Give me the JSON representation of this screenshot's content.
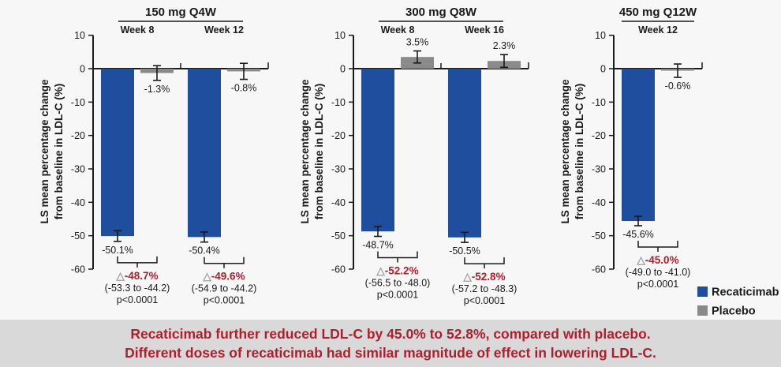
{
  "colors": {
    "recaticimab": "#1f4e9e",
    "placebo": "#8a8a8a",
    "axis": "#1a1a1a",
    "delta_red": "#af1e2d",
    "banner_bg": "#d9d9d9",
    "triangle_gray": "#a0a0a0",
    "page_bg": "#f7f7f7"
  },
  "icons": {
    "delta_triangle": "△"
  },
  "ylabel": {
    "line1": "LS mean percentage change",
    "line2": "from baseline in LDL-C (%)"
  },
  "legend": [
    {
      "label": "Recaticimab",
      "color": "#1f4e9e"
    },
    {
      "label": "Placebo",
      "color": "#8a8a8a"
    }
  ],
  "banner": {
    "line1": "Recaticimab further reduced LDL-C by 45.0% to 52.8%, compared with placebo.",
    "line2": "Different doses of recaticimab had similar magnitude of effect in lowering LDL-C."
  },
  "chart_data": [
    {
      "type": "bar",
      "title": "150 mg Q4W",
      "categories": [
        "Week 8",
        "Week 12"
      ],
      "ylabel": "LS mean percentage change from baseline in LDL-C (%)",
      "ylim": [
        -60,
        10
      ],
      "yticks": [
        10,
        0,
        -10,
        -20,
        -30,
        -40,
        -50,
        -60
      ],
      "series": [
        {
          "name": "Recaticimab",
          "values": [
            -50.1,
            -50.4
          ],
          "errors": [
            1.6,
            1.5
          ],
          "labels": [
            "-50.1%",
            "-50.4%"
          ]
        },
        {
          "name": "Placebo",
          "values": [
            -1.3,
            -0.8
          ],
          "errors": [
            2.2,
            2.4
          ],
          "labels": [
            "-1.3%",
            "-0.8%"
          ]
        }
      ],
      "annotations": [
        {
          "delta": "-48.7%",
          "ci": "(-53.3 to -44.2)",
          "p": "p<0.0001"
        },
        {
          "delta": "-49.6%",
          "ci": "(-54.9 to -44.2)",
          "p": "p<0.0001"
        }
      ]
    },
    {
      "type": "bar",
      "title": "300 mg Q8W",
      "categories": [
        "Week 8",
        "Week 16"
      ],
      "ylabel": "LS mean percentage change from baseline in LDL-C (%)",
      "ylim": [
        -60,
        10
      ],
      "yticks": [
        10,
        0,
        -10,
        -20,
        -30,
        -40,
        -50,
        -60
      ],
      "series": [
        {
          "name": "Recaticimab",
          "values": [
            -48.7,
            -50.5
          ],
          "errors": [
            1.5,
            1.5
          ],
          "labels": [
            "-48.7%",
            "-50.5%"
          ]
        },
        {
          "name": "Placebo",
          "values": [
            3.5,
            2.3
          ],
          "errors": [
            1.8,
            1.9
          ],
          "labels": [
            "3.5%",
            "2.3%"
          ]
        }
      ],
      "annotations": [
        {
          "delta": "-52.2%",
          "ci": "(-56.5 to -48.0)",
          "p": "p<0.0001"
        },
        {
          "delta": "-52.8%",
          "ci": "(-57.2 to -48.3)",
          "p": "p<0.0001"
        }
      ]
    },
    {
      "type": "bar",
      "title": "450 mg Q12W",
      "categories": [
        "Week 12"
      ],
      "ylabel": "LS mean percentage change from baseline in LDL-C (%)",
      "ylim": [
        -60,
        10
      ],
      "yticks": [
        10,
        0,
        -10,
        -20,
        -30,
        -40,
        -50,
        -60
      ],
      "series": [
        {
          "name": "Recaticimab",
          "values": [
            -45.6
          ],
          "errors": [
            1.4
          ],
          "labels": [
            "-45.6%"
          ]
        },
        {
          "name": "Placebo",
          "values": [
            -0.6
          ],
          "errors": [
            2.0
          ],
          "labels": [
            "-0.6%"
          ]
        }
      ],
      "annotations": [
        {
          "delta": "-45.0%",
          "ci": "(-49.0 to -41.0)",
          "p": "p<0.0001"
        }
      ]
    }
  ]
}
